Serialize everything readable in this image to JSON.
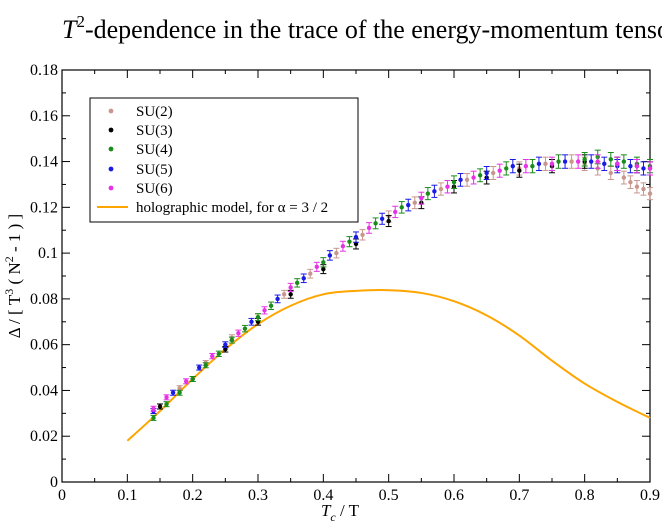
{
  "chart_data": {
    "type": "scatter",
    "title_prefix": "T",
    "title_superscript": "2",
    "title_rest": "-dependence in the trace of the energy-momentum tensor",
    "xlabel_main": "T",
    "xlabel_sub": "c",
    "xlabel_rest": " / T",
    "ylabel_parts": [
      "Δ / [ T",
      "3",
      " ( N",
      "2",
      " - 1 ) ]"
    ],
    "xlim": [
      0,
      0.9
    ],
    "ylim": [
      0,
      0.18
    ],
    "x_ticks": [
      0,
      0.1,
      0.2,
      0.3,
      0.4,
      0.5,
      0.6,
      0.7,
      0.8,
      0.9
    ],
    "x_tick_labels": [
      "0",
      "0.1",
      "0.2",
      "0.3",
      "0.4",
      "0.5",
      "0.6",
      "0.7",
      "0.8",
      "0.9"
    ],
    "y_ticks": [
      0,
      0.02,
      0.04,
      0.06,
      0.08,
      0.1,
      0.12,
      0.14,
      0.16,
      0.18
    ],
    "y_tick_labels": [
      "0",
      "0.02",
      "0.04",
      "0.06",
      "0.08",
      "0.1",
      "0.12",
      "0.14",
      "0.16",
      "0.18"
    ],
    "grid": false,
    "legend_position": "top-left",
    "series": [
      {
        "name": "SU(2)",
        "color": "#c8968c",
        "points": [
          [
            0.14,
            0.031
          ],
          [
            0.18,
            0.041
          ],
          [
            0.22,
            0.052
          ],
          [
            0.26,
            0.063
          ],
          [
            0.3,
            0.072
          ],
          [
            0.34,
            0.082
          ],
          [
            0.38,
            0.091
          ],
          [
            0.42,
            0.1
          ],
          [
            0.46,
            0.108
          ],
          [
            0.5,
            0.116
          ],
          [
            0.54,
            0.122
          ],
          [
            0.58,
            0.128
          ],
          [
            0.62,
            0.132
          ],
          [
            0.66,
            0.135
          ],
          [
            0.7,
            0.137
          ],
          [
            0.74,
            0.139
          ],
          [
            0.78,
            0.14
          ],
          [
            0.8,
            0.139
          ],
          [
            0.82,
            0.137
          ],
          [
            0.84,
            0.135
          ],
          [
            0.86,
            0.133
          ],
          [
            0.87,
            0.131
          ],
          [
            0.88,
            0.129
          ],
          [
            0.89,
            0.128
          ],
          [
            0.9,
            0.126
          ]
        ]
      },
      {
        "name": "SU(3)",
        "color": "#000000",
        "points": [
          [
            0.15,
            0.033
          ],
          [
            0.2,
            0.045
          ],
          [
            0.25,
            0.058
          ],
          [
            0.3,
            0.07
          ],
          [
            0.35,
            0.082
          ],
          [
            0.4,
            0.093
          ],
          [
            0.45,
            0.104
          ],
          [
            0.5,
            0.114
          ],
          [
            0.55,
            0.122
          ],
          [
            0.6,
            0.129
          ],
          [
            0.65,
            0.133
          ],
          [
            0.7,
            0.136
          ],
          [
            0.75,
            0.138
          ],
          [
            0.8,
            0.14
          ],
          [
            0.85,
            0.139
          ],
          [
            0.88,
            0.138
          ],
          [
            0.9,
            0.137
          ]
        ]
      },
      {
        "name": "SU(4)",
        "color": "#1a8c1a",
        "points": [
          [
            0.14,
            0.028
          ],
          [
            0.16,
            0.034
          ],
          [
            0.18,
            0.039
          ],
          [
            0.2,
            0.045
          ],
          [
            0.22,
            0.051
          ],
          [
            0.24,
            0.056
          ],
          [
            0.26,
            0.062
          ],
          [
            0.28,
            0.067
          ],
          [
            0.3,
            0.072
          ],
          [
            0.32,
            0.077
          ],
          [
            0.36,
            0.087
          ],
          [
            0.4,
            0.096
          ],
          [
            0.44,
            0.105
          ],
          [
            0.48,
            0.113
          ],
          [
            0.52,
            0.12
          ],
          [
            0.56,
            0.126
          ],
          [
            0.6,
            0.131
          ],
          [
            0.64,
            0.134
          ],
          [
            0.68,
            0.137
          ],
          [
            0.72,
            0.138
          ],
          [
            0.76,
            0.14
          ],
          [
            0.8,
            0.141
          ],
          [
            0.82,
            0.142
          ],
          [
            0.84,
            0.141
          ],
          [
            0.86,
            0.14
          ],
          [
            0.88,
            0.139
          ],
          [
            0.9,
            0.138
          ]
        ]
      },
      {
        "name": "SU(5)",
        "color": "#1a1ae6",
        "points": [
          [
            0.14,
            0.031
          ],
          [
            0.17,
            0.039
          ],
          [
            0.21,
            0.05
          ],
          [
            0.25,
            0.06
          ],
          [
            0.29,
            0.07
          ],
          [
            0.33,
            0.08
          ],
          [
            0.37,
            0.089
          ],
          [
            0.41,
            0.099
          ],
          [
            0.45,
            0.107
          ],
          [
            0.49,
            0.115
          ],
          [
            0.53,
            0.121
          ],
          [
            0.57,
            0.127
          ],
          [
            0.61,
            0.132
          ],
          [
            0.65,
            0.135
          ],
          [
            0.69,
            0.138
          ],
          [
            0.73,
            0.139
          ],
          [
            0.77,
            0.14
          ],
          [
            0.81,
            0.14
          ],
          [
            0.83,
            0.139
          ],
          [
            0.85,
            0.138
          ],
          [
            0.87,
            0.138
          ],
          [
            0.89,
            0.137
          ]
        ]
      },
      {
        "name": "SU(6)",
        "color": "#e633e6",
        "points": [
          [
            0.14,
            0.032
          ],
          [
            0.16,
            0.037
          ],
          [
            0.19,
            0.044
          ],
          [
            0.23,
            0.055
          ],
          [
            0.27,
            0.065
          ],
          [
            0.31,
            0.075
          ],
          [
            0.35,
            0.085
          ],
          [
            0.39,
            0.094
          ],
          [
            0.43,
            0.103
          ],
          [
            0.47,
            0.111
          ],
          [
            0.51,
            0.118
          ],
          [
            0.55,
            0.124
          ],
          [
            0.59,
            0.129
          ],
          [
            0.63,
            0.133
          ],
          [
            0.67,
            0.136
          ],
          [
            0.71,
            0.138
          ],
          [
            0.75,
            0.139
          ],
          [
            0.79,
            0.14
          ],
          [
            0.82,
            0.14
          ],
          [
            0.85,
            0.139
          ],
          [
            0.88,
            0.138
          ],
          [
            0.9,
            0.137
          ]
        ]
      }
    ],
    "model": {
      "name": "holographic model, for α = 3 / 2",
      "color": "#ffa500",
      "type": "line",
      "points": [
        [
          0.1,
          0.018
        ],
        [
          0.15,
          0.031
        ],
        [
          0.2,
          0.045
        ],
        [
          0.25,
          0.058
        ],
        [
          0.3,
          0.069
        ],
        [
          0.35,
          0.077
        ],
        [
          0.4,
          0.082
        ],
        [
          0.45,
          0.0835
        ],
        [
          0.5,
          0.0838
        ],
        [
          0.55,
          0.0826
        ],
        [
          0.6,
          0.079
        ],
        [
          0.65,
          0.0728
        ],
        [
          0.7,
          0.064
        ],
        [
          0.75,
          0.053
        ],
        [
          0.8,
          0.043
        ],
        [
          0.85,
          0.035
        ],
        [
          0.9,
          0.028
        ]
      ]
    }
  }
}
